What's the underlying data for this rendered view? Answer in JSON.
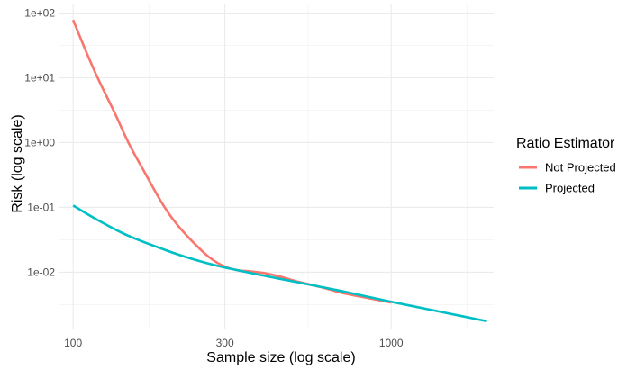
{
  "chart_data": {
    "type": "line",
    "title": "",
    "xlabel": "Sample size (log scale)",
    "ylabel": "Risk (log scale)",
    "x_scale": "log10",
    "y_scale": "log10",
    "xlim": [
      90,
      2100
    ],
    "ylim": [
      0.00135,
      140
    ],
    "x_ticks": [
      {
        "value": 100,
        "label": "100"
      },
      {
        "value": 300,
        "label": "300"
      },
      {
        "value": 1000,
        "label": "1000"
      }
    ],
    "x_minor_ticks": [
      173.2,
      547.7,
      1732
    ],
    "y_ticks": [
      {
        "value": 0.01,
        "label": "1e-02"
      },
      {
        "value": 0.1,
        "label": "1e-01"
      },
      {
        "value": 1,
        "label": "1e+00"
      },
      {
        "value": 10,
        "label": "1e+01"
      },
      {
        "value": 100,
        "label": "1e+02"
      }
    ],
    "y_minor_ticks": [
      0.00316,
      0.0316,
      0.316,
      3.16,
      31.6
    ],
    "grid": true,
    "legend": {
      "title": "Ratio Estimator",
      "position": "right"
    },
    "series": [
      {
        "name": "Not Projected",
        "color": "#F8766D",
        "x": [
          100,
          110,
          120,
          135,
          150,
          170,
          190,
          210,
          240,
          270,
          300,
          330,
          360,
          400,
          450,
          500,
          600,
          700,
          800,
          1000
        ],
        "y": [
          78,
          25,
          9.5,
          2.9,
          0.95,
          0.31,
          0.118,
          0.058,
          0.028,
          0.0165,
          0.0122,
          0.0107,
          0.0103,
          0.0097,
          0.0085,
          0.0073,
          0.0059,
          0.0048,
          0.0042,
          0.0034
        ]
      },
      {
        "name": "Projected",
        "color": "#00BFC4",
        "x": [
          100,
          120,
          150,
          200,
          250,
          300,
          400,
          500,
          700,
          1000,
          1400,
          2000
        ],
        "y": [
          0.107,
          0.063,
          0.036,
          0.021,
          0.0148,
          0.0118,
          0.0088,
          0.0071,
          0.0051,
          0.0035,
          0.0025,
          0.00175
        ]
      }
    ]
  }
}
